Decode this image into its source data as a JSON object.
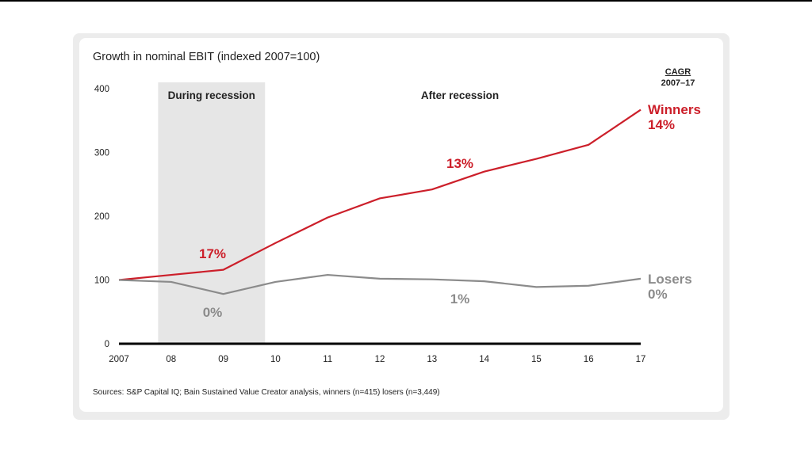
{
  "chart_data": {
    "type": "line",
    "title": "Growth in nominal EBIT (indexed 2007=100)",
    "x": [
      "2007",
      "08",
      "09",
      "10",
      "11",
      "12",
      "13",
      "14",
      "15",
      "16",
      "17"
    ],
    "ylim": [
      0,
      400
    ],
    "yticks": [
      0,
      100,
      200,
      300,
      400
    ],
    "grid": false,
    "series": [
      {
        "name": "Winners",
        "color": "#cc1f2a",
        "values": [
          100,
          108,
          116,
          158,
          198,
          228,
          242,
          270,
          290,
          312,
          367
        ],
        "end_label": [
          "Winners",
          "14%"
        ]
      },
      {
        "name": "Losers",
        "color": "#8b8b8b",
        "values": [
          100,
          97,
          78,
          97,
          108,
          102,
          101,
          98,
          89,
          91,
          102
        ],
        "end_label": [
          "Losers",
          "0%"
        ]
      }
    ],
    "regions": [
      {
        "label": "During recession",
        "from": "08",
        "to": "10",
        "color": "#e6e6e6"
      },
      {
        "label": "After recession"
      }
    ],
    "annotations": [
      {
        "text": "17%",
        "series": "Winners",
        "period": "During recession"
      },
      {
        "text": "0%",
        "series": "Losers",
        "period": "During recession"
      },
      {
        "text": "13%",
        "series": "Winners",
        "period": "After recession"
      },
      {
        "text": "1%",
        "series": "Losers",
        "period": "After recession"
      }
    ],
    "cagr_header": {
      "label": "CAGR",
      "years": "2007–17"
    },
    "source": "Sources: S&P Capital IQ; Bain Sustained Value Creator analysis, winners (n=415) losers (n=3,449)"
  }
}
